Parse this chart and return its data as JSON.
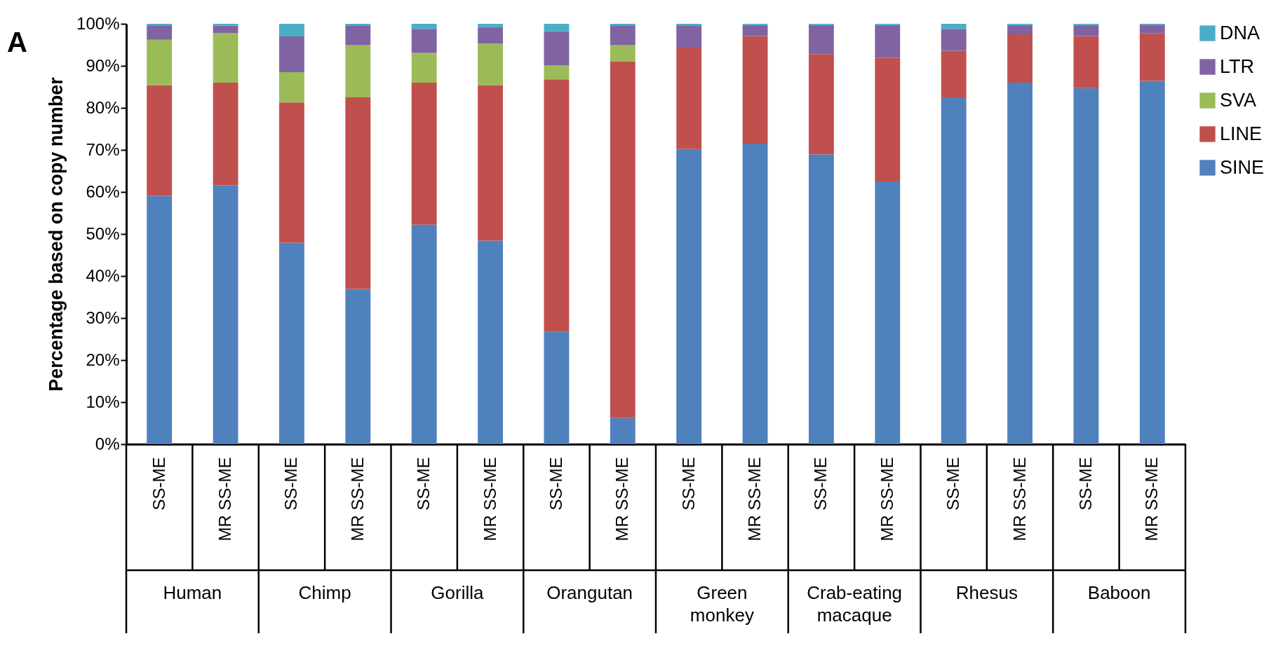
{
  "chart_data": {
    "type": "bar",
    "stacked": true,
    "title": "A",
    "ylabel": "Percentage based on copy number",
    "categories": [
      "SS-ME",
      "MR SS-ME",
      "SS-ME",
      "MR SS-ME",
      "SS-ME",
      "MR SS-ME",
      "SS-ME",
      "MR SS-ME",
      "SS-ME",
      "MR SS-ME",
      "SS-ME",
      "MR SS-ME",
      "SS-ME",
      "MR SS-ME",
      "SS-ME",
      "MR SS-ME"
    ],
    "annotations": [
      "Human",
      "Chimp",
      "Gorilla",
      "Orangutan",
      "Green monkey",
      "Crab-eating macaque",
      "Rhesus",
      "Baboon"
    ],
    "series": [
      {
        "name": "SINE",
        "color": "#4f81bd",
        "values": [
          59.1,
          61.6,
          47.9,
          36.9,
          52.2,
          48.4,
          26.7,
          6.2,
          70.2,
          71.5,
          68.9,
          62.5,
          82.5,
          86.0,
          84.7,
          86.4
        ]
      },
      {
        "name": "LINE",
        "color": "#c0504d",
        "values": [
          26.3,
          24.4,
          33.4,
          45.6,
          33.8,
          37.0,
          60.1,
          84.9,
          24.3,
          25.6,
          23.9,
          29.4,
          11.1,
          11.5,
          12.4,
          11.4
        ]
      },
      {
        "name": "SVA",
        "color": "#9bbb59",
        "values": [
          10.8,
          11.8,
          7.2,
          12.4,
          7.1,
          9.9,
          3.3,
          3.8,
          0,
          0,
          0,
          0,
          0,
          0,
          0,
          0
        ]
      },
      {
        "name": "LTR",
        "color": "#8064a2",
        "values": [
          3.3,
          1.8,
          8.5,
          4.6,
          5.7,
          3.9,
          8.1,
          4.6,
          5.0,
          2.6,
          6.9,
          7.8,
          5.2,
          2.2,
          2.6,
          2.0
        ]
      },
      {
        "name": "DNA",
        "color": "#4bacc6",
        "values": [
          0.5,
          0.4,
          3.0,
          0.5,
          1.2,
          0.8,
          1.8,
          0.5,
          0.5,
          0.3,
          0.3,
          0.3,
          1.2,
          0.3,
          0.3,
          0.2
        ]
      }
    ],
    "ylim": [
      0,
      100
    ],
    "yticks": [
      {
        "value": 0,
        "label": "0%"
      },
      {
        "value": 10,
        "label": "10%"
      },
      {
        "value": 20,
        "label": "20%"
      },
      {
        "value": 30,
        "label": "30%"
      },
      {
        "value": 40,
        "label": "40%"
      },
      {
        "value": 50,
        "label": "50%"
      },
      {
        "value": 60,
        "label": "60%"
      },
      {
        "value": 70,
        "label": "70%"
      },
      {
        "value": 80,
        "label": "80%"
      },
      {
        "value": 90,
        "label": "90%"
      },
      {
        "value": 100,
        "label": "100%"
      }
    ],
    "grid": false,
    "legend": "right"
  }
}
